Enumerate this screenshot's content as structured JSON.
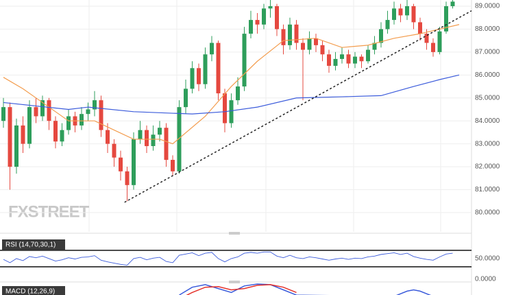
{
  "logo": "FXSTREET",
  "chart_data": [
    {
      "type": "candlestick",
      "open": [
        84.0,
        84.6,
        82.0,
        83.8,
        83.0,
        84.6,
        84.2,
        84.9,
        84.0,
        83.1,
        83.6,
        84.2,
        83.8,
        84.3,
        84.5,
        84.9,
        83.6,
        83.0,
        82.4,
        81.8,
        81.2,
        83.2,
        83.6,
        82.9,
        83.4,
        83.7,
        82.3,
        81.8,
        84.6,
        85.4,
        86.3,
        85.6,
        86.9,
        87.4,
        85.2,
        83.9,
        84.9,
        85.5,
        87.8,
        88.4,
        88.2,
        88.9,
        89.0,
        88.0,
        87.3,
        88.2,
        87.4,
        87.1,
        87.6,
        87.3,
        86.9,
        86.4,
        86.7,
        86.9,
        86.5,
        86.8,
        86.6,
        87.1,
        87.4,
        88.0,
        88.4,
        88.9,
        88.6,
        89.0,
        88.3,
        87.8,
        87.4,
        87.0,
        87.9,
        89.0
      ],
      "high": [
        85.0,
        84.8,
        84.1,
        84.2,
        84.9,
        85.0,
        85.1,
        85.0,
        84.2,
        83.9,
        84.5,
        84.4,
        84.6,
        84.8,
        85.3,
        85.1,
        83.9,
        83.2,
        82.7,
        82.0,
        83.5,
        84.0,
        83.8,
        83.8,
        84.0,
        83.9,
        82.5,
        84.9,
        85.8,
        86.6,
        86.5,
        87.2,
        87.7,
        87.5,
        85.4,
        85.2,
        85.9,
        88.1,
        88.8,
        88.7,
        89.1,
        89.3,
        89.1,
        88.2,
        88.5,
        88.4,
        87.6,
        87.9,
        87.8,
        87.5,
        87.1,
        87.0,
        87.2,
        87.1,
        87.0,
        86.9,
        87.3,
        87.7,
        88.3,
        88.8,
        89.2,
        89.1,
        89.3,
        89.1,
        88.5,
        88.0,
        87.6,
        88.1,
        89.2,
        89.4
      ],
      "low": [
        83.7,
        81.0,
        81.7,
        82.6,
        82.8,
        83.9,
        84.0,
        83.6,
        82.8,
        82.9,
        83.4,
        83.5,
        83.6,
        84.0,
        84.2,
        83.3,
        82.6,
        82.0,
        81.4,
        80.5,
        81.0,
        83.0,
        82.6,
        82.7,
        83.1,
        82.0,
        81.6,
        81.7,
        84.3,
        85.2,
        85.3,
        85.4,
        86.6,
        84.9,
        83.5,
        83.7,
        84.7,
        85.3,
        87.6,
        87.8,
        88.0,
        88.5,
        87.7,
        86.9,
        87.1,
        87.1,
        84.9,
        86.9,
        87.0,
        86.6,
        86.1,
        86.2,
        86.5,
        86.3,
        86.3,
        86.3,
        86.5,
        86.9,
        87.2,
        87.8,
        88.2,
        88.3,
        88.4,
        88.0,
        87.5,
        87.1,
        86.8,
        86.9,
        87.8,
        88.9
      ],
      "close": [
        84.6,
        82.0,
        83.8,
        83.0,
        84.6,
        84.2,
        84.9,
        84.0,
        83.1,
        83.6,
        84.2,
        83.8,
        84.3,
        84.5,
        84.9,
        83.6,
        83.0,
        82.4,
        81.8,
        81.2,
        83.2,
        83.6,
        82.9,
        83.4,
        83.7,
        82.3,
        81.8,
        84.6,
        85.4,
        86.3,
        85.6,
        86.9,
        87.4,
        85.2,
        83.9,
        84.9,
        85.5,
        87.8,
        88.4,
        88.2,
        88.9,
        89.0,
        88.0,
        87.3,
        88.2,
        87.4,
        87.1,
        87.6,
        87.3,
        86.9,
        86.4,
        86.7,
        86.9,
        86.5,
        86.8,
        86.6,
        87.1,
        87.4,
        88.0,
        88.4,
        88.9,
        88.6,
        89.0,
        88.3,
        87.8,
        87.4,
        87.0,
        87.9,
        89.0,
        89.2
      ],
      "up_color": "#2e9e5b",
      "down_color": "#e5483f",
      "series": [
        {
          "color": "#f39c4d",
          "x": [
            0,
            3,
            6,
            10,
            14,
            17,
            20,
            24,
            26,
            31,
            35,
            39,
            43,
            48,
            52,
            56,
            60,
            64,
            70
          ],
          "values": [
            85.9,
            85.4,
            84.8,
            84.0,
            84.0,
            83.6,
            83.2,
            83.2,
            83.0,
            84.2,
            85.5,
            86.6,
            87.5,
            87.6,
            87.2,
            87.3,
            87.6,
            87.8,
            88.2
          ]
        },
        {
          "color": "#3b5bdb",
          "x": [
            0,
            10,
            13,
            20,
            29,
            34,
            39,
            45,
            52,
            58,
            63,
            67,
            70
          ],
          "values": [
            84.8,
            84.5,
            84.6,
            84.4,
            84.3,
            84.4,
            84.6,
            85.0,
            85.05,
            85.1,
            85.5,
            85.8,
            86.0
          ]
        }
      ],
      "trendline": {
        "x": [
          18.6,
          71.9
        ],
        "values": [
          80.45,
          88.8
        ]
      },
      "ylim": [
        79.16,
        89.27
      ],
      "yticks": [
        {
          "value": 80,
          "label": "80.0000"
        },
        {
          "value": 81,
          "label": "81.0000"
        },
        {
          "value": 82,
          "label": "82.0000"
        },
        {
          "value": 83,
          "label": "83.0000"
        },
        {
          "value": 84,
          "label": "84.0000"
        },
        {
          "value": 85,
          "label": "85.0000"
        },
        {
          "value": 86,
          "label": "86.0000"
        },
        {
          "value": 87,
          "label": "87.0000"
        },
        {
          "value": 88,
          "label": "88.0000"
        },
        {
          "value": 89,
          "label": "89.0000"
        }
      ],
      "grid": true
    },
    {
      "type": "line",
      "title": "RSI (14,70,30,1)",
      "series": [
        {
          "color": "#3b5bdb",
          "values": [
            48,
            40,
            50,
            45,
            55,
            52,
            56,
            50,
            44,
            47,
            52,
            49,
            53,
            54,
            57,
            46,
            42,
            39,
            36,
            34,
            50,
            53,
            47,
            51,
            53,
            43,
            40,
            58,
            61,
            64,
            57,
            63,
            65,
            50,
            42,
            50,
            54,
            63,
            65,
            63,
            66,
            66,
            56,
            52,
            58,
            52,
            50,
            54,
            52,
            49,
            46,
            49,
            51,
            48,
            51,
            50,
            54,
            56,
            60,
            62,
            64,
            60,
            63,
            55,
            51,
            48,
            46,
            54,
            61,
            63
          ]
        }
      ],
      "levels": [
        70,
        30
      ],
      "ylim": [
        -5,
        103
      ],
      "yticks": [
        {
          "value": 50,
          "label": "50.0000"
        },
        {
          "value": 0,
          "label": "0.0000"
        }
      ]
    },
    {
      "type": "line",
      "title": "MACD (12,26,9)",
      "series": [
        {
          "color": "#3b5bdb",
          "x": [
            27,
            29,
            31,
            33,
            35,
            37,
            39,
            41,
            43,
            45,
            60,
            62,
            63,
            64,
            66
          ],
          "values": [
            0.6,
            1.2,
            1.4,
            1.1,
            0.8,
            1.3,
            1.45,
            1.4,
            1.0,
            0.6,
            0.5,
            0.9,
            1.0,
            0.9,
            0.5
          ]
        },
        {
          "color": "#e5312b",
          "x": [
            27,
            29,
            31,
            33,
            35,
            37,
            39,
            41,
            43,
            45
          ],
          "values": [
            0.3,
            0.8,
            1.2,
            1.25,
            1.0,
            1.1,
            1.35,
            1.4,
            1.2,
            0.8
          ]
        }
      ],
      "ylim": [
        -1.5,
        1.5
      ]
    }
  ]
}
